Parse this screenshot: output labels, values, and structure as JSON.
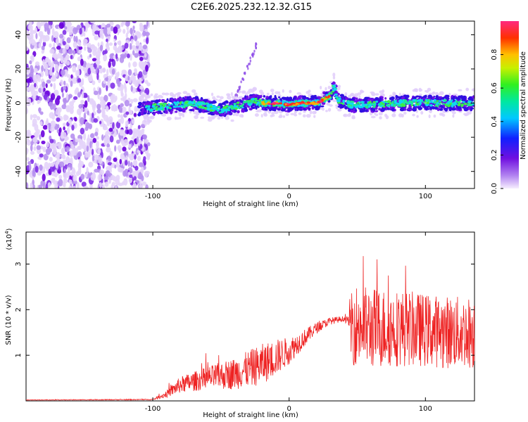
{
  "page": {
    "title": "C2E6.2025.232.12.32.G15"
  },
  "chart_data": [
    {
      "type": "heatmap",
      "title": "C2E6.2025.232.12.32.G15",
      "xlabel": "Height of straight line (km)",
      "ylabel": "Frequency (Hz)",
      "xlim": [
        -193,
        136
      ],
      "ylim": [
        -50,
        48
      ],
      "xticks": [
        -100,
        0,
        100
      ],
      "xtick_labels": [
        "-100",
        "0",
        "100"
      ],
      "yticks": [
        -40,
        -20,
        0,
        20,
        40
      ],
      "ytick_labels": [
        "-40",
        "-20",
        "0",
        "20",
        "40"
      ],
      "colorbar": {
        "label": "Normalized spectral amplitude",
        "range": [
          0,
          1
        ],
        "ticks": [
          0.0,
          0.2,
          0.4,
          0.6,
          0.8
        ],
        "tick_labels": [
          "0.0",
          "0.2",
          "0.4",
          "0.6",
          "0.8"
        ]
      },
      "frequency_ridge": {
        "x": [
          -110,
          -90,
          -70,
          -50,
          -40,
          -25,
          -20,
          -10,
          0,
          10,
          20,
          30,
          33,
          36,
          45,
          60,
          80,
          100,
          120,
          136
        ],
        "y": [
          -3,
          -2,
          0,
          -4,
          -2,
          1,
          0,
          0,
          -1,
          0,
          0,
          4,
          10,
          2,
          -1,
          -1,
          0,
          0,
          0,
          0
        ]
      }
    },
    {
      "type": "line",
      "xlabel": "Height of straight line (km)",
      "ylabel": "SNR (10 * v/v)",
      "y_multiplier": "(x10^4)",
      "xlim": [
        -193,
        136
      ],
      "ylim": [
        0,
        3.7
      ],
      "xticks": [
        -100,
        0,
        100
      ],
      "xtick_labels": [
        "-100",
        "0",
        "100"
      ],
      "yticks": [
        1,
        2,
        3
      ],
      "ytick_labels": [
        "1",
        "2",
        "3"
      ],
      "series": [
        {
          "name": "SNR",
          "color": "#ee2222",
          "envelope_x": [
            -193,
            -100,
            -90,
            -80,
            -60,
            -40,
            -20,
            -10,
            0,
            10,
            20,
            30,
            40,
            44,
            45,
            60,
            80,
            100,
            120,
            136
          ],
          "envelope_y": [
            0.02,
            0.03,
            0.15,
            0.35,
            0.5,
            0.6,
            0.8,
            0.95,
            1.1,
            1.35,
            1.6,
            1.75,
            1.8,
            1.75,
            1.7,
            1.6,
            1.6,
            1.55,
            1.5,
            1.5
          ],
          "noise_y": [
            0.005,
            0.01,
            0.08,
            0.18,
            0.25,
            0.35,
            0.45,
            0.4,
            0.3,
            0.2,
            0.12,
            0.08,
            0.06,
            0.1,
            0.9,
            0.9,
            0.85,
            0.8,
            0.8,
            0.8
          ]
        }
      ]
    }
  ]
}
